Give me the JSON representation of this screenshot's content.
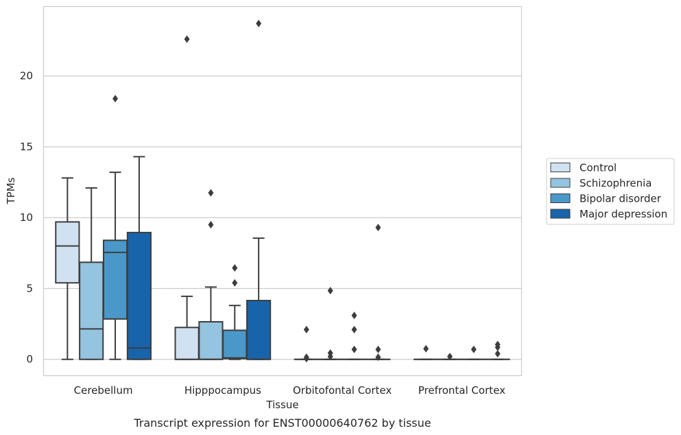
{
  "chart_data": {
    "type": "boxplot",
    "title": "Transcript expression for ENST00000640762 by tissue",
    "xlabel": "Tissue",
    "ylabel": "TPMs",
    "ylim": [
      -1.15,
      24.9
    ],
    "yticks": [
      0,
      5,
      10,
      15,
      20
    ],
    "grid": "horizontal",
    "legend_position": "right",
    "categories": [
      "Cerebellum",
      "Hipppocampus",
      "Orbitofontal Cortex",
      "Prefrontal Cortex"
    ],
    "series": [
      {
        "name": "Control",
        "color": "#d0e1f2",
        "boxes": [
          {
            "whislo": 0,
            "q1": 5.4,
            "med": 8.0,
            "q3": 9.7,
            "whishi": 12.8,
            "fliers": []
          },
          {
            "whislo": 0,
            "q1": 0,
            "med": 0,
            "q3": 2.25,
            "whishi": 4.45,
            "fliers": [
              22.6
            ]
          },
          {
            "whislo": 0,
            "q1": 0,
            "med": 0,
            "q3": 0,
            "whishi": 0,
            "fliers": [
              2.1,
              0.15,
              0.05
            ]
          },
          {
            "whislo": 0,
            "q1": 0,
            "med": 0,
            "q3": 0,
            "whishi": 0,
            "fliers": [
              0.75
            ]
          }
        ]
      },
      {
        "name": "Schizophrenia",
        "color": "#94c4df",
        "boxes": [
          {
            "whislo": 0,
            "q1": 0,
            "med": 2.15,
            "q3": 6.85,
            "whishi": 12.1,
            "fliers": []
          },
          {
            "whislo": 0,
            "q1": 0,
            "med": 0,
            "q3": 2.65,
            "whishi": 5.1,
            "fliers": [
              11.75,
              9.5
            ]
          },
          {
            "whislo": 0,
            "q1": 0,
            "med": 0,
            "q3": 0,
            "whishi": 0,
            "fliers": [
              4.85,
              0.45,
              0.2
            ]
          },
          {
            "whislo": 0,
            "q1": 0,
            "med": 0,
            "q3": 0,
            "whishi": 0,
            "fliers": [
              0.2
            ]
          }
        ]
      },
      {
        "name": "Bipolar disorder",
        "color": "#4a98c9",
        "boxes": [
          {
            "whislo": 0,
            "q1": 2.85,
            "med": 7.55,
            "q3": 8.4,
            "whishi": 13.2,
            "fliers": [
              18.4
            ]
          },
          {
            "whislo": 0,
            "q1": 0.05,
            "med": 0.1,
            "q3": 2.05,
            "whishi": 3.8,
            "fliers": [
              6.45,
              5.4
            ]
          },
          {
            "whislo": 0,
            "q1": 0,
            "med": 0,
            "q3": 0,
            "whishi": 0,
            "fliers": [
              3.1,
              2.1,
              0.7
            ]
          },
          {
            "whislo": 0,
            "q1": 0,
            "med": 0,
            "q3": 0,
            "whishi": 0,
            "fliers": [
              0.7
            ]
          }
        ]
      },
      {
        "name": "Major depression",
        "color": "#1764ab",
        "boxes": [
          {
            "whislo": 0,
            "q1": 0,
            "med": 0.8,
            "q3": 8.95,
            "whishi": 14.3,
            "fliers": []
          },
          {
            "whislo": 0,
            "q1": 0,
            "med": 0,
            "q3": 4.15,
            "whishi": 8.55,
            "fliers": [
              23.7
            ]
          },
          {
            "whislo": 0,
            "q1": 0,
            "med": 0,
            "q3": 0,
            "whishi": 0,
            "fliers": [
              9.3,
              0.7,
              0.15
            ]
          },
          {
            "whislo": 0,
            "q1": 0,
            "med": 0,
            "q3": 0,
            "whishi": 0,
            "fliers": [
              1.05,
              0.85,
              0.4
            ]
          }
        ]
      }
    ]
  }
}
